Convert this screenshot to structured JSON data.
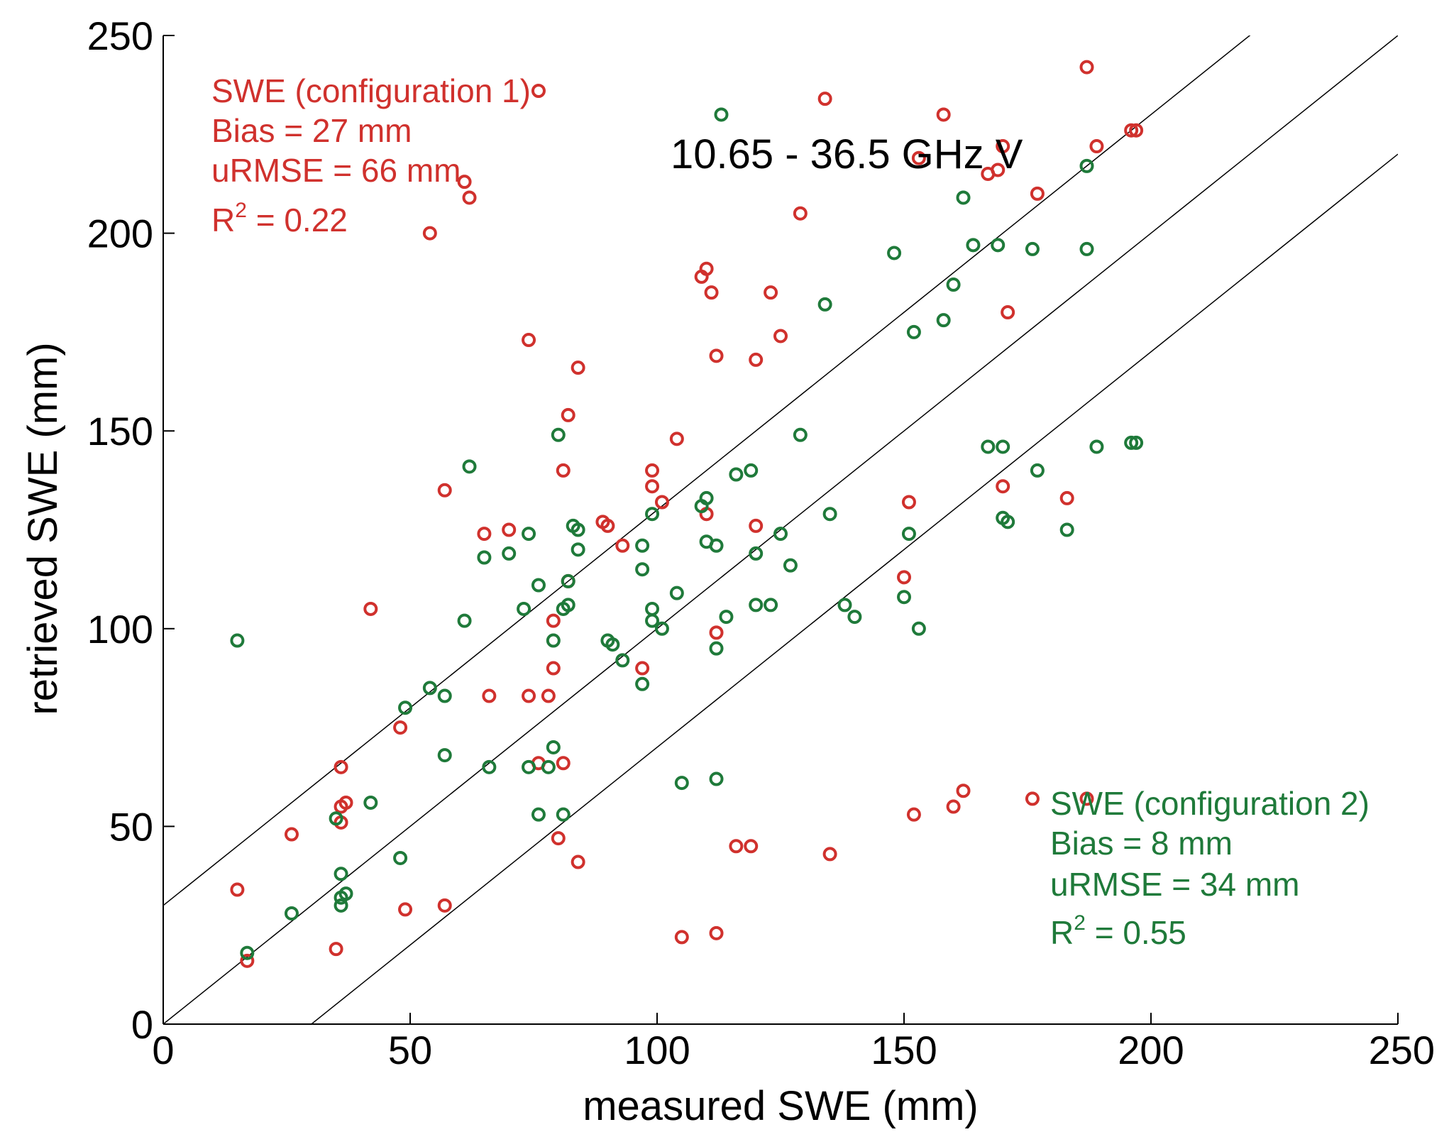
{
  "chart_data": {
    "type": "scatter",
    "title": "10.65 - 36.5 GHz V",
    "xlabel": "measured SWE (mm)",
    "ylabel": "retrieved SWE (mm)",
    "xlim": [
      0,
      250
    ],
    "ylim": [
      0,
      250
    ],
    "xticks": [
      "0",
      "50",
      "100",
      "150",
      "200",
      "250"
    ],
    "yticks": [
      "0",
      "50",
      "100",
      "150",
      "200",
      "250"
    ],
    "grid": false,
    "reference_lines": [
      {
        "name": "1:1 line",
        "offset": 0
      },
      {
        "name": "+30 mm line",
        "offset": 30
      },
      {
        "name": "-30 mm line",
        "offset": -30
      }
    ],
    "series": [
      {
        "name": "SWE (configuration 1)",
        "color": "#d0312d",
        "annotation": {
          "line1": "SWE (configuration 1)",
          "line2": "Bias = 27 mm",
          "line3": "uRMSE = 66 mm",
          "r2_prefix": "R",
          "r2_sup": "2",
          "r2_value": " = 0.22"
        },
        "points": [
          [
            76,
            236
          ],
          [
            61,
            213
          ],
          [
            62,
            209
          ],
          [
            54,
            200
          ],
          [
            74,
            173
          ],
          [
            84,
            166
          ],
          [
            82,
            154
          ],
          [
            81,
            140
          ],
          [
            57,
            135
          ],
          [
            65,
            124
          ],
          [
            70,
            125
          ],
          [
            42,
            105
          ],
          [
            48,
            75
          ],
          [
            36,
            65
          ],
          [
            37,
            56
          ],
          [
            36,
            55
          ],
          [
            36,
            51
          ],
          [
            26,
            48
          ],
          [
            15,
            34
          ],
          [
            17,
            16
          ],
          [
            35,
            19
          ],
          [
            49,
            29
          ],
          [
            57,
            30
          ],
          [
            66,
            83
          ],
          [
            74,
            83
          ],
          [
            78,
            83
          ],
          [
            79,
            90
          ],
          [
            79,
            102
          ],
          [
            82,
            112
          ],
          [
            81,
            66
          ],
          [
            80,
            47
          ],
          [
            84,
            41
          ],
          [
            76,
            66
          ],
          [
            89,
            127
          ],
          [
            90,
            126
          ],
          [
            93,
            121
          ],
          [
            97,
            90
          ],
          [
            99,
            140
          ],
          [
            99,
            136
          ],
          [
            101,
            132
          ],
          [
            104,
            148
          ],
          [
            109,
            189
          ],
          [
            110,
            191
          ],
          [
            111,
            185
          ],
          [
            112,
            169
          ],
          [
            110,
            129
          ],
          [
            112,
            99
          ],
          [
            120,
            168
          ],
          [
            120,
            126
          ],
          [
            123,
            185
          ],
          [
            125,
            174
          ],
          [
            129,
            205
          ],
          [
            134,
            234
          ],
          [
            135,
            43
          ],
          [
            116,
            45
          ],
          [
            119,
            45
          ],
          [
            105,
            22
          ],
          [
            112,
            23
          ],
          [
            151,
            132
          ],
          [
            150,
            113
          ],
          [
            152,
            53
          ],
          [
            153,
            219
          ],
          [
            158,
            230
          ],
          [
            160,
            55
          ],
          [
            162,
            59
          ],
          [
            167,
            215
          ],
          [
            169,
            216
          ],
          [
            170,
            222
          ],
          [
            170,
            136
          ],
          [
            171,
            180
          ],
          [
            176,
            57
          ],
          [
            177,
            210
          ],
          [
            183,
            133
          ],
          [
            187,
            242
          ],
          [
            187,
            57
          ],
          [
            189,
            222
          ],
          [
            196,
            226
          ],
          [
            197,
            226
          ]
        ]
      },
      {
        "name": "SWE (configuration 2)",
        "color": "#1f7a3a",
        "annotation": {
          "line1": "SWE (configuration 2)",
          "line2": "Bias = 8 mm",
          "line3": "uRMSE = 34 mm",
          "r2_prefix": "R",
          "r2_sup": "2",
          "r2_value": " = 0.55"
        },
        "points": [
          [
            15,
            97
          ],
          [
            17,
            18
          ],
          [
            26,
            28
          ],
          [
            35,
            52
          ],
          [
            36,
            38
          ],
          [
            36,
            32
          ],
          [
            36,
            30
          ],
          [
            37,
            33
          ],
          [
            42,
            56
          ],
          [
            48,
            42
          ],
          [
            49,
            80
          ],
          [
            54,
            85
          ],
          [
            57,
            83
          ],
          [
            57,
            68
          ],
          [
            61,
            102
          ],
          [
            62,
            141
          ],
          [
            65,
            118
          ],
          [
            66,
            65
          ],
          [
            70,
            119
          ],
          [
            73,
            105
          ],
          [
            74,
            124
          ],
          [
            74,
            65
          ],
          [
            76,
            53
          ],
          [
            76,
            111
          ],
          [
            78,
            65
          ],
          [
            79,
            70
          ],
          [
            79,
            97
          ],
          [
            80,
            149
          ],
          [
            81,
            105
          ],
          [
            81,
            53
          ],
          [
            82,
            106
          ],
          [
            82,
            112
          ],
          [
            83,
            126
          ],
          [
            84,
            125
          ],
          [
            84,
            120
          ],
          [
            90,
            97
          ],
          [
            91,
            96
          ],
          [
            93,
            92
          ],
          [
            97,
            121
          ],
          [
            97,
            115
          ],
          [
            97,
            86
          ],
          [
            99,
            105
          ],
          [
            99,
            102
          ],
          [
            99,
            129
          ],
          [
            101,
            100
          ],
          [
            104,
            109
          ],
          [
            105,
            61
          ],
          [
            109,
            131
          ],
          [
            110,
            133
          ],
          [
            110,
            122
          ],
          [
            112,
            121
          ],
          [
            112,
            95
          ],
          [
            112,
            62
          ],
          [
            113,
            230
          ],
          [
            114,
            103
          ],
          [
            116,
            139
          ],
          [
            119,
            140
          ],
          [
            120,
            119
          ],
          [
            120,
            106
          ],
          [
            123,
            106
          ],
          [
            125,
            124
          ],
          [
            127,
            116
          ],
          [
            129,
            149
          ],
          [
            134,
            182
          ],
          [
            135,
            129
          ],
          [
            138,
            106
          ],
          [
            140,
            103
          ],
          [
            148,
            195
          ],
          [
            150,
            108
          ],
          [
            151,
            124
          ],
          [
            152,
            175
          ],
          [
            153,
            100
          ],
          [
            158,
            178
          ],
          [
            160,
            187
          ],
          [
            162,
            209
          ],
          [
            164,
            197
          ],
          [
            167,
            146
          ],
          [
            169,
            197
          ],
          [
            170,
            146
          ],
          [
            170,
            128
          ],
          [
            171,
            127
          ],
          [
            176,
            196
          ],
          [
            177,
            140
          ],
          [
            183,
            125
          ],
          [
            187,
            196
          ],
          [
            187,
            217
          ],
          [
            189,
            146
          ],
          [
            196,
            147
          ],
          [
            197,
            147
          ]
        ]
      }
    ]
  }
}
